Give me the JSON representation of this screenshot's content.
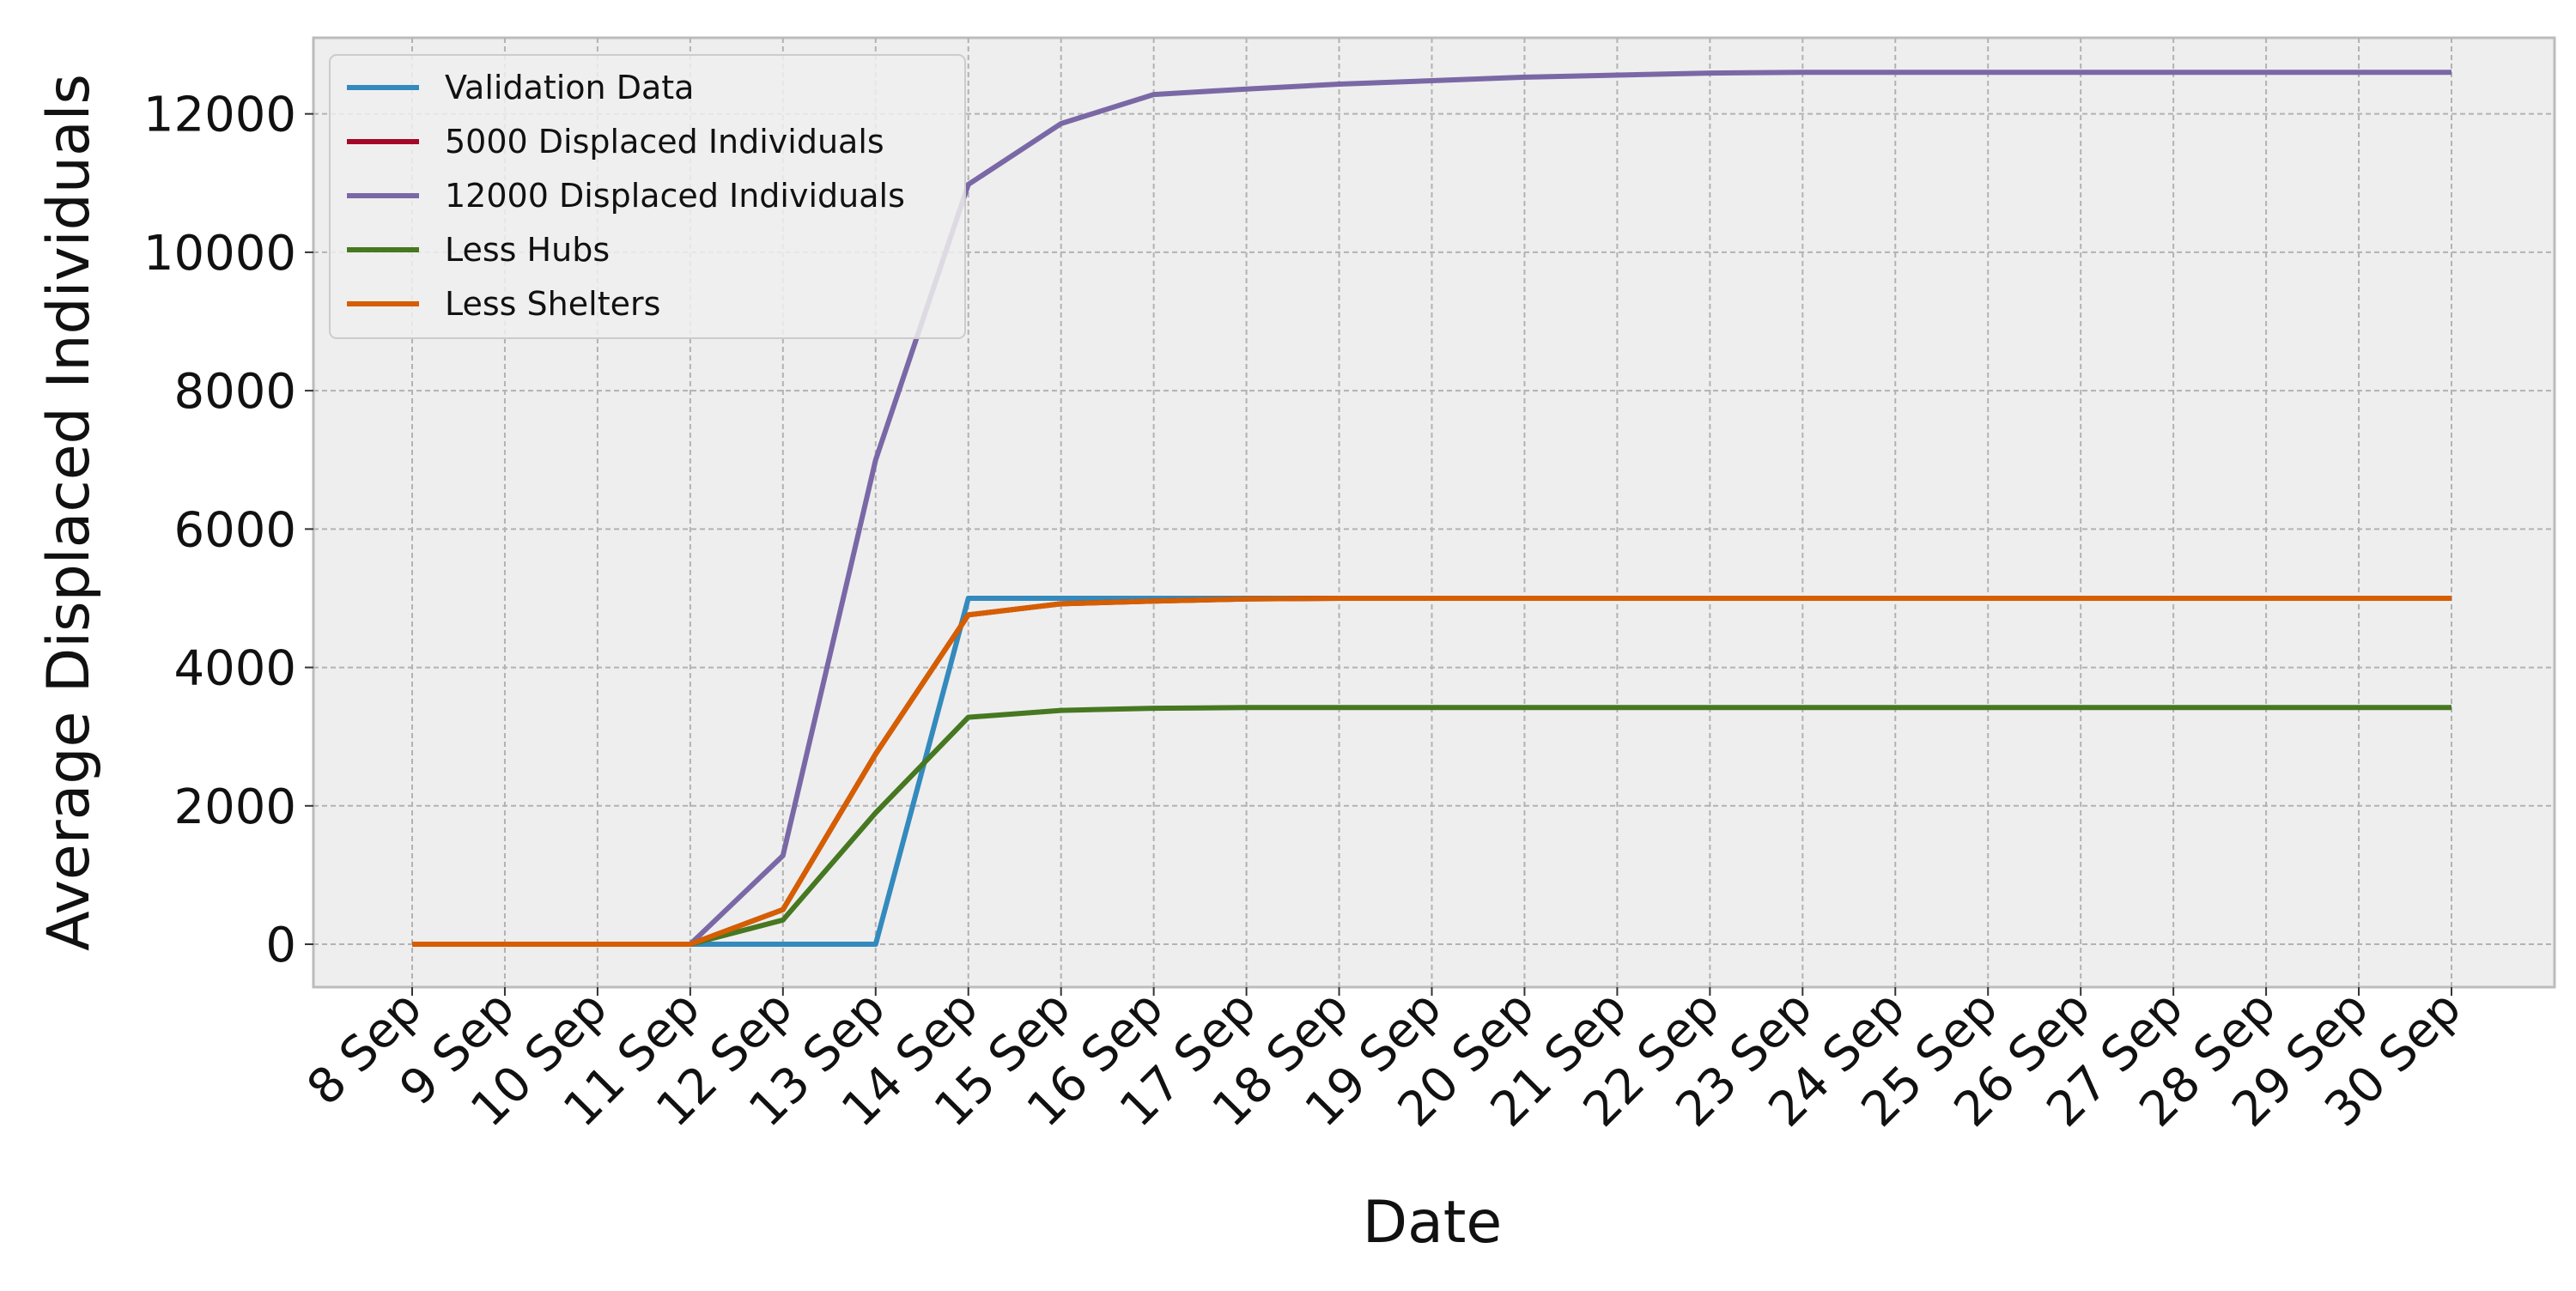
{
  "chart_data": {
    "type": "line",
    "xlabel": "Date",
    "ylabel": "Average Displaced Individuals",
    "categories": [
      "8 Sep",
      "9 Sep",
      "10 Sep",
      "11 Sep",
      "12 Sep",
      "13 Sep",
      "14 Sep",
      "15 Sep",
      "16 Sep",
      "17 Sep",
      "18 Sep",
      "19 Sep",
      "20 Sep",
      "21 Sep",
      "22 Sep",
      "23 Sep",
      "24 Sep",
      "25 Sep",
      "26 Sep",
      "27 Sep",
      "28 Sep",
      "29 Sep",
      "30 Sep"
    ],
    "ylim": [
      -620,
      13100
    ],
    "yticks": [
      0,
      2000,
      4000,
      6000,
      8000,
      10000,
      12000
    ],
    "grid": true,
    "legend_position": "top-left",
    "series": [
      {
        "name": "Validation Data",
        "color": "#348ABD",
        "values": [
          0,
          0,
          0,
          0,
          0,
          0,
          5000,
          5000,
          5000,
          5000,
          5000,
          5000,
          5000,
          5000,
          5000,
          5000,
          5000,
          5000,
          5000,
          5000,
          5000,
          5000,
          5000
        ]
      },
      {
        "name": "5000 Displaced Individuals",
        "color": "#A60628",
        "values": [
          0,
          0,
          0,
          0,
          500,
          2750,
          4760,
          4920,
          4960,
          4990,
          5000,
          5000,
          5000,
          5000,
          5000,
          5000,
          5000,
          5000,
          5000,
          5000,
          5000,
          5000,
          5000
        ]
      },
      {
        "name": "12000 Displaced Individuals",
        "color": "#7A68A6",
        "values": [
          0,
          0,
          0,
          0,
          1280,
          7000,
          10980,
          11860,
          12280,
          12360,
          12430,
          12480,
          12530,
          12560,
          12590,
          12600,
          12600,
          12600,
          12600,
          12600,
          12600,
          12600,
          12600
        ]
      },
      {
        "name": "Less Hubs",
        "color": "#467821",
        "values": [
          0,
          0,
          0,
          0,
          350,
          1900,
          3280,
          3380,
          3410,
          3420,
          3420,
          3420,
          3420,
          3420,
          3420,
          3420,
          3420,
          3420,
          3420,
          3420,
          3420,
          3420,
          3420
        ]
      },
      {
        "name": "Less Shelters",
        "color": "#D55E00",
        "values": [
          0,
          0,
          0,
          0,
          500,
          2750,
          4760,
          4920,
          4960,
          4990,
          5000,
          5000,
          5000,
          5000,
          5000,
          5000,
          5000,
          5000,
          5000,
          5000,
          5000,
          5000,
          5000
        ]
      }
    ]
  }
}
